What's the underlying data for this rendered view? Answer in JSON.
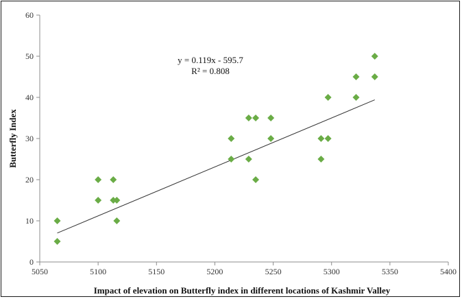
{
  "chart_data": {
    "type": "scatter",
    "title": "",
    "xlabel": "Impact of elevation on  Butterfly index in different locations of Kashmir Valley",
    "ylabel": "Butterfly  Index",
    "xlim": [
      5050,
      5400
    ],
    "ylim": [
      0,
      60
    ],
    "xticks": [
      "5050",
      "5100",
      "5150",
      "5200",
      "5250",
      "5300",
      "5350",
      "5400"
    ],
    "yticks": [
      "0",
      "10",
      "20",
      "30",
      "40",
      "50",
      "60"
    ],
    "grid": false,
    "legend": "none",
    "marker": "diamond",
    "marker_color": "#6aac46",
    "trendline_color": "#333333",
    "series": [
      {
        "points": [
          {
            "x": 5065,
            "y": 10
          },
          {
            "x": 5065,
            "y": 5
          },
          {
            "x": 5100,
            "y": 20
          },
          {
            "x": 5100,
            "y": 15
          },
          {
            "x": 5113,
            "y": 20
          },
          {
            "x": 5113,
            "y": 15
          },
          {
            "x": 5116,
            "y": 15
          },
          {
            "x": 5116,
            "y": 10
          },
          {
            "x": 5214,
            "y": 30
          },
          {
            "x": 5214,
            "y": 25
          },
          {
            "x": 5229,
            "y": 35
          },
          {
            "x": 5229,
            "y": 25
          },
          {
            "x": 5235,
            "y": 35
          },
          {
            "x": 5235,
            "y": 20
          },
          {
            "x": 5248,
            "y": 35
          },
          {
            "x": 5248,
            "y": 30
          },
          {
            "x": 5291,
            "y": 30
          },
          {
            "x": 5291,
            "y": 25
          },
          {
            "x": 5297,
            "y": 40
          },
          {
            "x": 5297,
            "y": 30
          },
          {
            "x": 5321,
            "y": 45
          },
          {
            "x": 5321,
            "y": 40
          },
          {
            "x": 5337,
            "y": 50
          },
          {
            "x": 5337,
            "y": 45
          }
        ]
      }
    ],
    "trendline": {
      "equation": "y = 0.119x - 595.7",
      "r_squared": "R² = 0.808",
      "slope": 0.119,
      "intercept": -595.7,
      "x_range": [
        5065,
        5337
      ]
    }
  }
}
